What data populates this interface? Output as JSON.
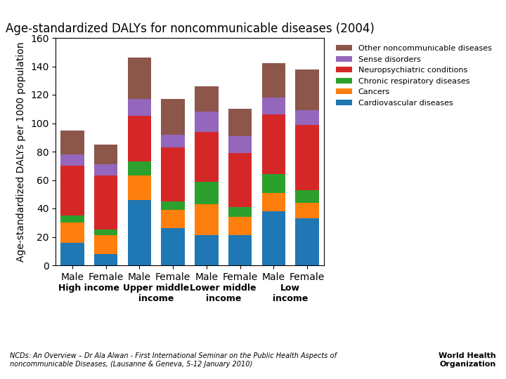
{
  "chart_data": {
    "type": "bar",
    "stacked": true,
    "grid": false,
    "legend": "upper left",
    "title": "Age-standardized DALYs for noncommunicable diseases (2004)",
    "y_label": "Age-standardized DALYs per 1000 population",
    "categories": [
      "Male",
      "Female",
      "Male",
      "Female",
      "Male",
      "Female",
      "Male",
      "Female"
    ],
    "groups": [
      "High income",
      "Upper middle\nincome",
      "Lower middle\nincome",
      "Low\nincome"
    ],
    "series": [
      {
        "name": "Cardiovascular diseases",
        "values": [
          16,
          8,
          46,
          26,
          21,
          21,
          38,
          33
        ]
      },
      {
        "name": "Cancers",
        "values": [
          14,
          13,
          17,
          13,
          22,
          13,
          13,
          11
        ]
      },
      {
        "name": "Chronic respiratory diseases",
        "values": [
          5,
          4,
          10,
          6,
          16,
          7,
          13,
          9
        ]
      },
      {
        "name": "Neuropsychiatric conditions",
        "values": [
          35,
          38,
          32,
          38,
          35,
          38,
          42,
          46
        ]
      },
      {
        "name": "Sense disorders",
        "values": [
          8,
          8,
          12,
          9,
          14,
          12,
          12,
          10
        ]
      },
      {
        "name": "Other noncommunicable diseases",
        "values": [
          17,
          14,
          29,
          25,
          18,
          19,
          24,
          29
        ]
      }
    ],
    "ylim": [
      0,
      160
    ],
    "yticks": [
      0,
      20,
      40,
      60,
      80,
      100,
      120,
      140,
      160
    ],
    "annotations": [
      "NCDs: An Overview – Dr Ala Alwan - First International Seminar on the Public Health Aspects of\nnoncommunicable Diseases, (Lausanne & Geneva, 5-12 January 2010)",
      "World Health\nOrganization"
    ]
  }
}
